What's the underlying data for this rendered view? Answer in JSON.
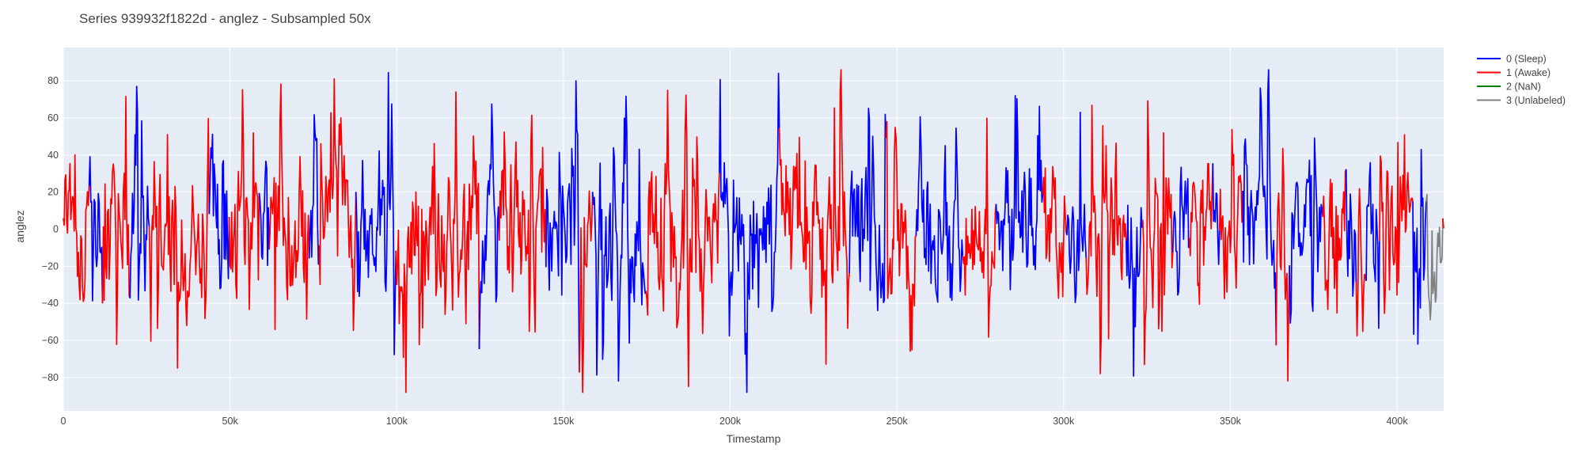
{
  "chart_data": {
    "type": "line",
    "title": "Series 939932f1822d - anglez - Subsampled 50x",
    "xlabel": "Timestamp",
    "ylabel": "anglez",
    "xlim": [
      0,
      414000
    ],
    "ylim": [
      -98,
      98
    ],
    "x_ticks": [
      0,
      50000,
      100000,
      150000,
      200000,
      250000,
      300000,
      350000,
      400000
    ],
    "x_tick_labels": [
      "0",
      "50k",
      "100k",
      "150k",
      "200k",
      "250k",
      "300k",
      "350k",
      "400k"
    ],
    "y_ticks": [
      -80,
      -60,
      -40,
      -20,
      0,
      20,
      40,
      60,
      80
    ],
    "y_tick_labels": [
      "−80",
      "−60",
      "−40",
      "−20",
      "0",
      "20",
      "40",
      "60",
      "80"
    ],
    "grid": true,
    "legend_position": "top-right",
    "series": [
      {
        "name": "0 (Sleep)",
        "color": "#0000ff",
        "segments": [
          [
            8000,
            12000
          ],
          [
            20000,
            26000
          ],
          [
            44000,
            50000
          ],
          [
            59000,
            62000
          ],
          [
            74000,
            77000
          ],
          [
            88000,
            100000
          ],
          [
            125000,
            131000
          ],
          [
            145000,
            155000
          ],
          [
            159000,
            175000
          ],
          [
            197000,
            215000
          ],
          [
            236000,
            247000
          ],
          [
            256000,
            270000
          ],
          [
            280000,
            294000
          ],
          [
            301000,
            307000
          ],
          [
            319000,
            324000
          ],
          [
            333000,
            338000
          ],
          [
            345000,
            347000
          ],
          [
            354000,
            364000
          ],
          [
            368000,
            378000
          ],
          [
            385000,
            388000
          ],
          [
            391000,
            395000
          ],
          [
            405000,
            409000
          ]
        ]
      },
      {
        "name": "1 (Awake)",
        "color": "#ff0000"
      },
      {
        "name": "2 (NaN)",
        "color": "#008000"
      },
      {
        "name": "3 (Unlabeled)",
        "color": "#808080",
        "segments": [
          [
            409000,
            414000
          ]
        ]
      }
    ],
    "value_range": {
      "min": -88,
      "max": 86
    }
  }
}
